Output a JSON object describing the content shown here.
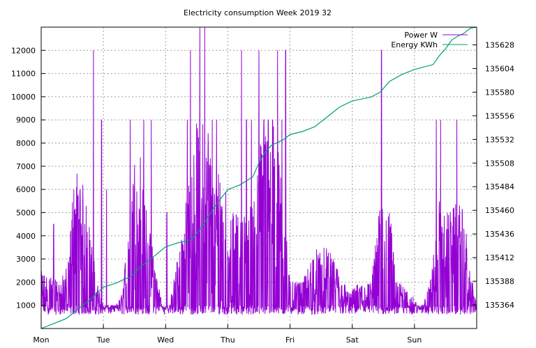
{
  "chart_data": {
    "type": "line",
    "title": "Electricity consumption Week 2019 32",
    "x_categories": [
      "Mon",
      "Tue",
      "Wed",
      "Thu",
      "Fri",
      "Sat",
      "Sun"
    ],
    "x_range_days": [
      0,
      7
    ],
    "y_left": {
      "range": [
        0,
        13000
      ],
      "ticks": [
        1000,
        2000,
        3000,
        4000,
        5000,
        6000,
        7000,
        8000,
        9000,
        10000,
        11000,
        12000
      ]
    },
    "y_right": {
      "range": [
        135340,
        135646
      ],
      "ticks": [
        135364,
        135388,
        135412,
        135436,
        135460,
        135484,
        135508,
        135532,
        135556,
        135580,
        135604,
        135628
      ]
    },
    "grid": true,
    "legend_position": "top-right",
    "series": [
      {
        "name": "Power W",
        "axis": "left",
        "color": "#9400d3",
        "style": "spiky",
        "baseline": 800,
        "envelope_x": [
          0,
          0.3,
          0.45,
          0.5,
          0.58,
          0.7,
          0.9,
          1.0,
          1.2,
          1.3,
          1.45,
          1.55,
          1.7,
          1.95,
          2.05,
          2.3,
          2.5,
          2.7,
          2.8,
          2.9,
          3.0,
          3.1,
          3.3,
          3.45,
          3.55,
          3.75,
          3.9,
          4.0,
          4.2,
          4.4,
          4.6,
          4.8,
          4.95,
          5.1,
          5.3,
          5.45,
          5.5,
          5.6,
          5.75,
          5.95,
          6.1,
          6.25,
          6.4,
          6.55,
          6.7,
          6.8,
          6.9,
          7.0
        ],
        "envelope_y": [
          2500,
          2000,
          3000,
          6000,
          7000,
          6000,
          2000,
          1000,
          1000,
          1500,
          6000,
          9000,
          5000,
          1000,
          800,
          5000,
          9000,
          9000,
          6000,
          9000,
          5000,
          5000,
          5000,
          6000,
          9000,
          9000,
          6000,
          2000,
          2000,
          3500,
          3500,
          2500,
          1500,
          2000,
          2000,
          5500,
          6000,
          5000,
          2000,
          1500,
          800,
          2000,
          5500,
          5000,
          5500,
          5000,
          2500,
          1000
        ],
        "peaks_x": [
          0.2,
          0.84,
          0.97,
          1.05,
          1.43,
          1.65,
          1.77,
          2.02,
          2.35,
          2.4,
          2.55,
          2.63,
          2.75,
          2.82,
          3.22,
          3.3,
          3.38,
          3.5,
          3.58,
          3.65,
          3.72,
          3.8,
          3.87,
          3.93,
          5.47,
          6.35,
          6.42,
          6.68
        ],
        "peaks_y": [
          4500,
          12000,
          9000,
          6000,
          9000,
          9000,
          9000,
          5000,
          9000,
          12000,
          13000,
          13000,
          9000,
          9000,
          12000,
          9000,
          9000,
          12000,
          9000,
          9000,
          9000,
          12000,
          9000,
          12000,
          12000,
          9000,
          9000,
          9000
        ]
      },
      {
        "name": "Energy KWh",
        "axis": "right",
        "color": "#009e73",
        "x": [
          0,
          0.2,
          0.4,
          0.5,
          0.6,
          0.8,
          1.0,
          1.2,
          1.3,
          1.45,
          1.6,
          1.75,
          2.0,
          2.2,
          2.4,
          2.5,
          2.6,
          2.8,
          3.0,
          3.2,
          3.4,
          3.5,
          3.6,
          3.7,
          3.9,
          4.0,
          4.2,
          4.4,
          4.6,
          4.8,
          5.0,
          5.3,
          5.45,
          5.6,
          5.8,
          6.0,
          6.3,
          6.4,
          6.5,
          6.6,
          6.7,
          6.8,
          6.9,
          7.0
        ],
        "y": [
          135340,
          135345,
          135350,
          135355,
          135360,
          135370,
          135382,
          135386,
          135389,
          135393,
          135403,
          135410,
          135423,
          135427,
          135430,
          135436,
          135445,
          135465,
          135481,
          135486,
          135494,
          135508,
          135519,
          135526,
          135532,
          135537,
          135540,
          135545,
          135555,
          135565,
          135571,
          135575,
          135580,
          135591,
          135598,
          135603,
          135608,
          135617,
          135624,
          135633,
          135637,
          135640,
          135645,
          135646
        ]
      }
    ]
  }
}
